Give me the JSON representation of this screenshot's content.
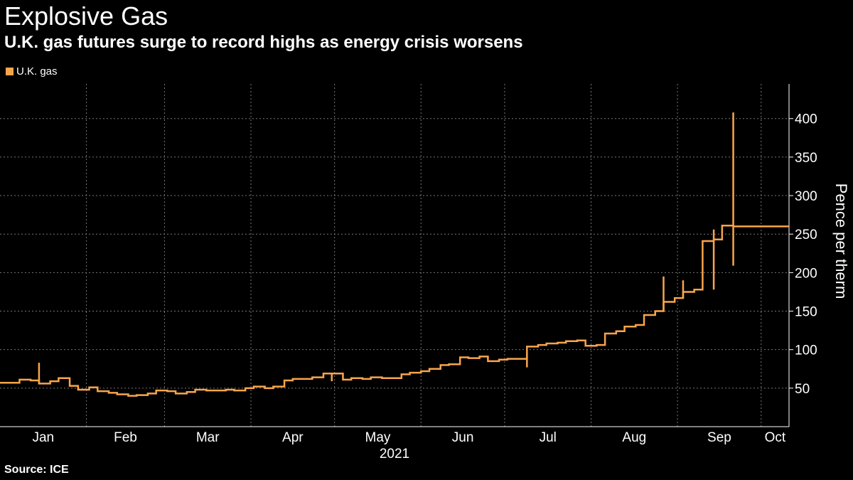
{
  "header": {
    "title": "Explosive Gas",
    "subtitle": "U.K. gas futures surge to record highs as energy crisis worsens"
  },
  "legend": {
    "label": "U.K. gas"
  },
  "source": "Source: ICE",
  "colors": {
    "series": "#f9a54c",
    "background": "#000000",
    "grid": "#777777",
    "text": "#ffffff"
  },
  "chart_data": {
    "type": "line",
    "title": "Explosive Gas",
    "subtitle": "U.K. gas futures surge to record highs as energy crisis worsens",
    "xlabel": "2021",
    "ylabel": "Pence per therm",
    "ylim": [
      0,
      445
    ],
    "yticks": [
      50,
      100,
      150,
      200,
      250,
      300,
      350,
      400
    ],
    "xlim": [
      0,
      283
    ],
    "xticks": [
      {
        "label": "Jan",
        "x": 0
      },
      {
        "label": "Feb",
        "x": 31
      },
      {
        "label": "Mar",
        "x": 59
      },
      {
        "label": "Apr",
        "x": 90
      },
      {
        "label": "May",
        "x": 120
      },
      {
        "label": "Jun",
        "x": 151
      },
      {
        "label": "Jul",
        "x": 181
      },
      {
        "label": "Aug",
        "x": 212
      },
      {
        "label": "Sep",
        "x": 243
      },
      {
        "label": "Oct",
        "x": 273
      }
    ],
    "year_label": "2021",
    "grid": true,
    "legend_position": "top-left",
    "series": [
      {
        "name": "U.K. gas",
        "x": [
          0,
          4,
          7,
          11,
          14,
          18,
          21,
          25,
          28,
          32,
          35,
          39,
          42,
          46,
          49,
          53,
          56,
          60,
          63,
          67,
          70,
          74,
          77,
          81,
          84,
          88,
          91,
          95,
          98,
          102,
          105,
          109,
          112,
          116,
          119,
          123,
          126,
          130,
          133,
          137,
          140,
          144,
          147,
          151,
          154,
          158,
          161,
          165,
          168,
          172,
          175,
          179,
          182,
          186,
          189,
          193,
          196,
          200,
          203,
          207,
          210,
          214,
          217,
          221,
          224,
          228,
          231,
          235,
          238,
          242,
          245,
          249,
          252,
          256,
          259,
          263,
          266,
          270,
          273,
          277,
          280,
          283
        ],
        "values": [
          57,
          57,
          61,
          60,
          56,
          59,
          63,
          53,
          48,
          51,
          46,
          44,
          42,
          40,
          41,
          43,
          47,
          46,
          43,
          45,
          48,
          47,
          47,
          48,
          47,
          50,
          52,
          50,
          52,
          60,
          62,
          62,
          64,
          69,
          69,
          61,
          63,
          62,
          64,
          63,
          63,
          68,
          70,
          72,
          75,
          80,
          81,
          90,
          89,
          91,
          85,
          87,
          88,
          88,
          104,
          106,
          108,
          109,
          111,
          112,
          105,
          106,
          121,
          124,
          130,
          132,
          145,
          150,
          162,
          167,
          175,
          178,
          241,
          243,
          261,
          260,
          260,
          260,
          260,
          260,
          260,
          260
        ],
        "highs": [
          {
            "x": 14,
            "high": 83,
            "low": 56
          },
          {
            "x": 119,
            "high": 70,
            "low": 59
          },
          {
            "x": 189,
            "high": 93,
            "low": 77
          },
          {
            "x": 238,
            "high": 195,
            "low": 150
          },
          {
            "x": 245,
            "high": 190,
            "low": 167
          },
          {
            "x": 256,
            "high": 256,
            "low": 178
          },
          {
            "x": 263,
            "high": 408,
            "low": 209
          }
        ]
      }
    ]
  }
}
